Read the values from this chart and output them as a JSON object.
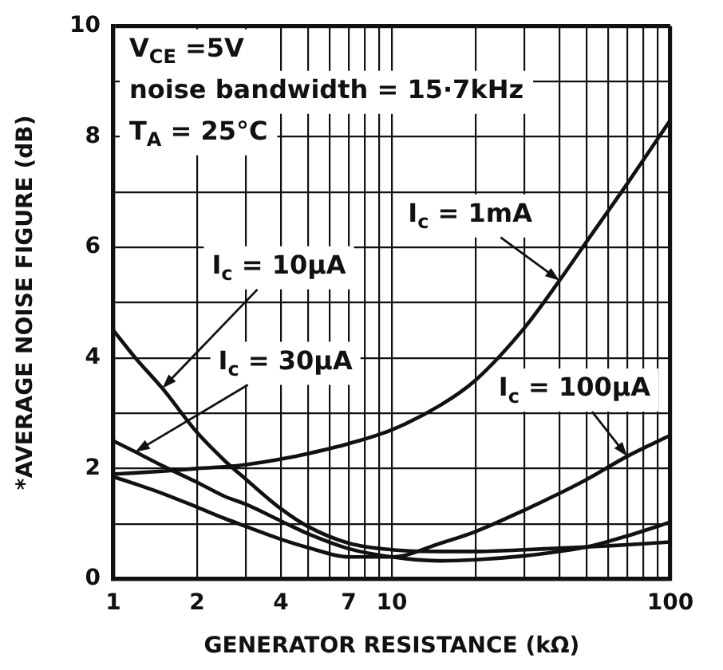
{
  "chart_data": {
    "type": "line",
    "xlabel": "GENERATOR RESISTANCE (kΩ)",
    "ylabel": "*AVERAGE NOISE FIGURE (dB)",
    "annotations": [
      "V$_{CE}$ =5V",
      "noise bandwidth = 15·7kHz",
      "T$_{A}$ = 25°C"
    ],
    "log": "x",
    "grid": true,
    "xlim": [
      1,
      100
    ],
    "ylim": [
      0,
      10
    ],
    "xticks": [
      1,
      2,
      {
        "value": 3,
        "label": null
      },
      4,
      {
        "value": 5,
        "label": null
      },
      {
        "value": 6,
        "label": null
      },
      7,
      {
        "value": 8,
        "label": null
      },
      {
        "value": 9,
        "label": null
      },
      10,
      {
        "value": 20,
        "label": null
      },
      {
        "value": 30,
        "label": null
      },
      {
        "value": 40,
        "label": null
      },
      {
        "value": 50,
        "label": null
      },
      {
        "value": 60,
        "label": null
      },
      {
        "value": 70,
        "label": null
      },
      {
        "value": 80,
        "label": null
      },
      {
        "value": 90,
        "label": null
      },
      100
    ],
    "yticks": [
      0,
      {
        "value": 1,
        "label": null
      },
      2,
      {
        "value": 3,
        "label": null
      },
      4,
      {
        "value": 5,
        "label": null
      },
      6,
      {
        "value": 7,
        "label": null
      },
      8,
      {
        "value": 9,
        "label": null
      },
      10
    ],
    "x": [
      1,
      1.2,
      1.5,
      2,
      2.5,
      3,
      4,
      5,
      7,
      10,
      15,
      20,
      30,
      40,
      50,
      70,
      100
    ],
    "series": [
      {
        "name": "I$_{c}$ = 10μA",
        "color": "#111111",
        "values": [
          4.5,
          4.0,
          3.45,
          2.65,
          2.15,
          1.8,
          1.27,
          0.95,
          0.65,
          0.53,
          0.5,
          0.5,
          0.53,
          0.56,
          0.58,
          0.62,
          0.67
        ]
      },
      {
        "name": "I$_{c}$ = 30μA",
        "color": "#111111",
        "values": [
          2.5,
          2.3,
          2.05,
          1.75,
          1.5,
          1.35,
          1.05,
          0.82,
          0.55,
          0.4,
          0.33,
          0.35,
          0.42,
          0.5,
          0.58,
          0.78,
          1.03
        ]
      },
      {
        "name": "I$_{c}$ = 100μA",
        "color": "#111111",
        "values": [
          1.85,
          1.72,
          1.55,
          1.3,
          1.1,
          0.95,
          0.72,
          0.57,
          0.4,
          0.4,
          0.65,
          0.86,
          1.25,
          1.55,
          1.8,
          2.22,
          2.6
        ]
      },
      {
        "name": "I$_{c}$ = 1mA",
        "color": "#111111",
        "values": [
          1.9,
          1.92,
          1.95,
          2.0,
          2.03,
          2.07,
          2.17,
          2.27,
          2.45,
          2.7,
          3.15,
          3.6,
          4.55,
          5.4,
          6.1,
          7.15,
          8.3
        ]
      }
    ]
  }
}
